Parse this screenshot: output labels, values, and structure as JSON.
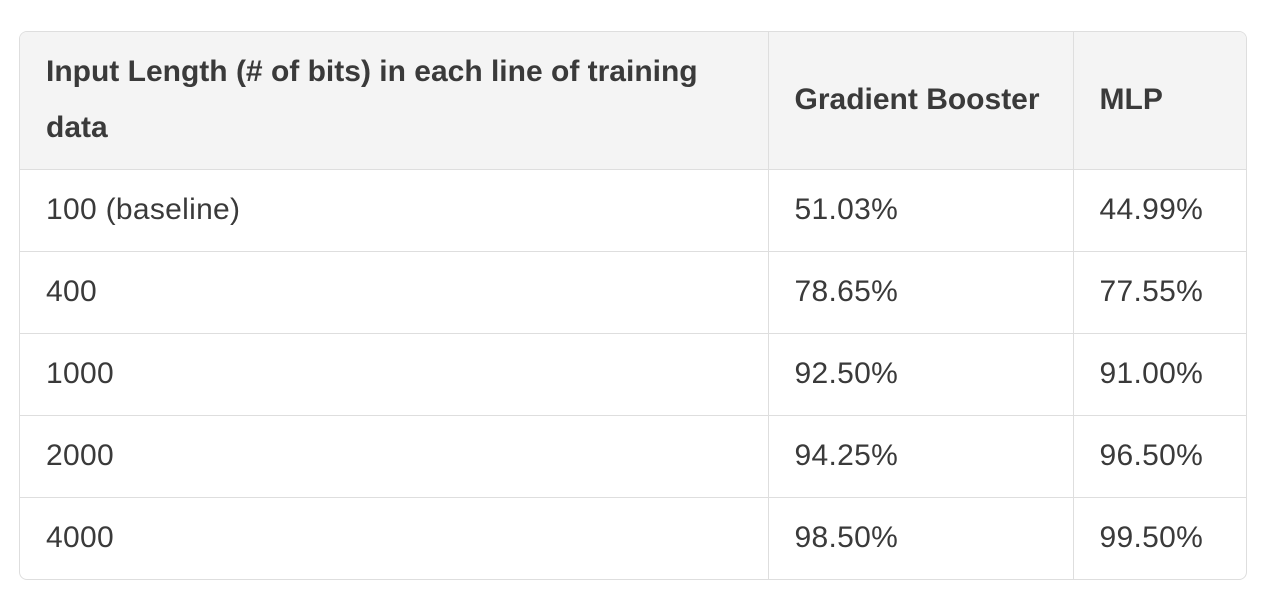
{
  "table": {
    "headers": [
      "Input Length (# of bits) in each line of training data",
      "Gradient Booster",
      "MLP"
    ],
    "rows": [
      [
        "100 (baseline)",
        "51.03%",
        "44.99%"
      ],
      [
        "400",
        "78.65%",
        "77.55%"
      ],
      [
        "1000",
        "92.50%",
        "91.00%"
      ],
      [
        "2000",
        "94.25%",
        "96.50%"
      ],
      [
        "4000",
        "98.50%",
        "99.50%"
      ]
    ]
  }
}
